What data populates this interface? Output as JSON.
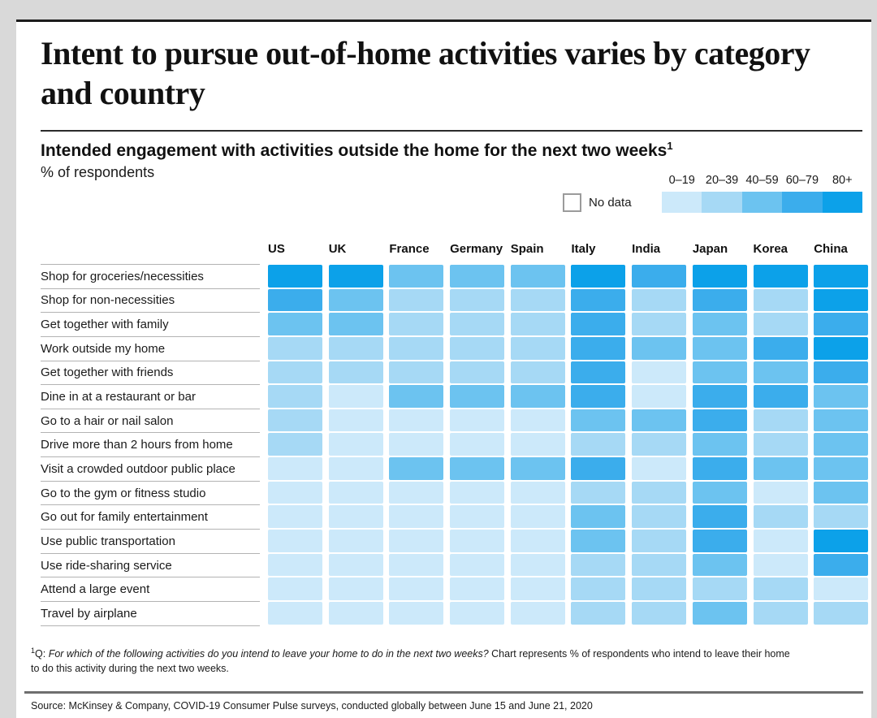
{
  "header": {
    "title": "Intent to pursue out-of-home activities varies by category and country",
    "subtitle": "Intended engagement with activities outside the home for the next two weeks",
    "subtitle_sup": "1",
    "unit_label": "% of respondents"
  },
  "footnote": {
    "marker": "1",
    "prefix": "Q:",
    "question_italic": "For which of the following activities do you intend to leave your home to do in the next two weeks?",
    "rest": "Chart represents % of respondents who intend to leave their home to do this activity during the next two weeks."
  },
  "source": "Source: McKinsey & Company, COVID-19 Consumer Pulse surveys, conducted globally between June 15 and June 21, 2020",
  "chart_data": {
    "type": "heatmap",
    "title": "Intended engagement with activities outside the home for the next two weeks",
    "unit": "% of respondents",
    "value_encoding": "color bins of % respondents",
    "legend": {
      "position": "top-right",
      "no_data_label": "No data",
      "no_data_color": "#ffffff",
      "bins": [
        {
          "label": "0–19",
          "color": "#cce9fa"
        },
        {
          "label": "20–39",
          "color": "#a6d9f5"
        },
        {
          "label": "40–59",
          "color": "#6cc3f0"
        },
        {
          "label": "60–79",
          "color": "#3badec"
        },
        {
          "label": "80+",
          "color": "#0ca1e9"
        }
      ]
    },
    "columns": [
      "US",
      "UK",
      "France",
      "Germany",
      "Spain",
      "Italy",
      "India",
      "Japan",
      "Korea",
      "China"
    ],
    "rows": [
      {
        "label": "Shop for groceries/necessities",
        "values": [
          "80+",
          "80+",
          "40–59",
          "40–59",
          "40–59",
          "80+",
          "60–79",
          "80+",
          "80+",
          "80+"
        ]
      },
      {
        "label": "Shop for non-necessities",
        "values": [
          "60–79",
          "40–59",
          "20–39",
          "20–39",
          "20–39",
          "60–79",
          "20–39",
          "60–79",
          "20–39",
          "80+"
        ]
      },
      {
        "label": "Get together with family",
        "values": [
          "40–59",
          "40–59",
          "20–39",
          "20–39",
          "20–39",
          "60–79",
          "20–39",
          "40–59",
          "20–39",
          "60–79"
        ]
      },
      {
        "label": "Work outside my home",
        "values": [
          "20–39",
          "20–39",
          "20–39",
          "20–39",
          "20–39",
          "60–79",
          "40–59",
          "40–59",
          "60–79",
          "80+"
        ]
      },
      {
        "label": "Get together with friends",
        "values": [
          "20–39",
          "20–39",
          "20–39",
          "20–39",
          "20–39",
          "60–79",
          "0–19",
          "40–59",
          "40–59",
          "60–79"
        ]
      },
      {
        "label": "Dine in at a restaurant or bar",
        "values": [
          "20–39",
          "0–19",
          "40–59",
          "40–59",
          "40–59",
          "60–79",
          "0–19",
          "60–79",
          "60–79",
          "40–59"
        ]
      },
      {
        "label": "Go to a hair or nail salon",
        "values": [
          "20–39",
          "0–19",
          "0–19",
          "0–19",
          "0–19",
          "40–59",
          "40–59",
          "60–79",
          "20–39",
          "40–59"
        ]
      },
      {
        "label": "Drive more than 2 hours from home",
        "values": [
          "20–39",
          "0–19",
          "0–19",
          "0–19",
          "0–19",
          "20–39",
          "20–39",
          "40–59",
          "20–39",
          "40–59"
        ]
      },
      {
        "label": "Visit a crowded outdoor public place",
        "values": [
          "0–19",
          "0–19",
          "40–59",
          "40–59",
          "40–59",
          "60–79",
          "0–19",
          "60–79",
          "40–59",
          "40–59"
        ]
      },
      {
        "label": "Go to the gym or fitness studio",
        "values": [
          "0–19",
          "0–19",
          "0–19",
          "0–19",
          "0–19",
          "20–39",
          "20–39",
          "40–59",
          "0–19",
          "40–59"
        ]
      },
      {
        "label": "Go out for family entertainment",
        "values": [
          "0–19",
          "0–19",
          "0–19",
          "0–19",
          "0–19",
          "40–59",
          "20–39",
          "60–79",
          "20–39",
          "20–39"
        ]
      },
      {
        "label": "Use public transportation",
        "values": [
          "0–19",
          "0–19",
          "0–19",
          "0–19",
          "0–19",
          "40–59",
          "20–39",
          "60–79",
          "0–19",
          "80+"
        ]
      },
      {
        "label": "Use ride-sharing service",
        "values": [
          "0–19",
          "0–19",
          "0–19",
          "0–19",
          "0–19",
          "20–39",
          "20–39",
          "40–59",
          "0–19",
          "60–79"
        ]
      },
      {
        "label": "Attend a large event",
        "values": [
          "0–19",
          "0–19",
          "0–19",
          "0–19",
          "0–19",
          "20–39",
          "20–39",
          "20–39",
          "20–39",
          "0–19"
        ]
      },
      {
        "label": "Travel by airplane",
        "values": [
          "0–19",
          "0–19",
          "0–19",
          "0–19",
          "0–19",
          "20–39",
          "20–39",
          "40–59",
          "20–39",
          "20–39"
        ]
      }
    ]
  }
}
